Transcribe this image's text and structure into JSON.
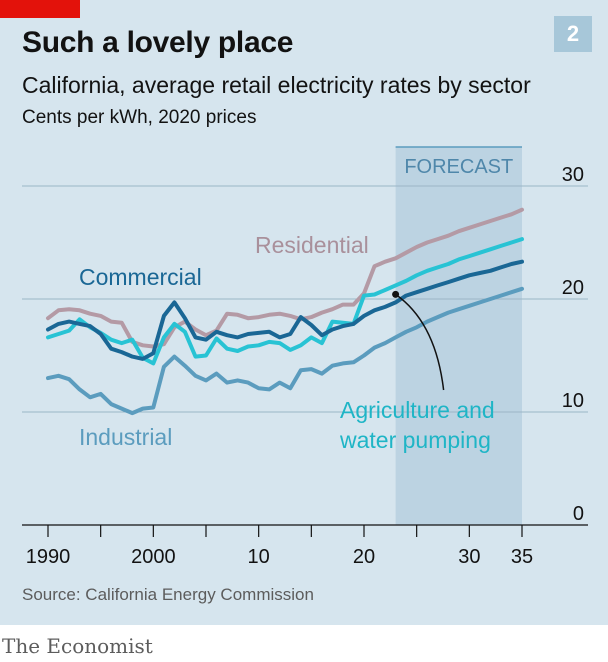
{
  "header": {
    "title": "Such a lovely place",
    "chart_number": "2",
    "subtitle": "California, average retail electricity rates by sector",
    "units": "Cents per kWh, 2020 prices"
  },
  "footer": {
    "source": "Source: California Energy Commission",
    "brand": "The Economist"
  },
  "colors": {
    "background": "#d6e5ee",
    "forecast_band": "#bcd3e2",
    "residential": "#b49aa5",
    "commercial": "#1a6795",
    "agriculture": "#28c3d4",
    "industrial": "#5b9cbe",
    "brand_red": "#e3120b"
  },
  "chart_data": {
    "type": "line",
    "x_range": [
      1990,
      2035
    ],
    "ylim": [
      0,
      30
    ],
    "y_ticks": [
      0,
      10,
      20,
      30
    ],
    "x_ticks": [
      1990,
      2000,
      2010,
      2020,
      2030,
      2035
    ],
    "x_tick_labels": [
      "1990",
      "2000",
      "10",
      "20",
      "30",
      "35"
    ],
    "grid": true,
    "forecast": {
      "label": "FORECAST",
      "start": 2023,
      "end": 2035
    },
    "x": [
      1990,
      1991,
      1992,
      1993,
      1994,
      1995,
      1996,
      1997,
      1998,
      1999,
      2000,
      2001,
      2002,
      2003,
      2004,
      2005,
      2006,
      2007,
      2008,
      2009,
      2010,
      2011,
      2012,
      2013,
      2014,
      2015,
      2016,
      2017,
      2018,
      2019,
      2020,
      2021,
      2022,
      2023,
      2024,
      2025,
      2026,
      2027,
      2028,
      2029,
      2030,
      2031,
      2032,
      2033,
      2034,
      2035
    ],
    "series": [
      {
        "name": "Residential",
        "key": "residential",
        "values": [
          18.3,
          19.0,
          19.1,
          19.0,
          18.7,
          18.5,
          18.0,
          17.9,
          16.2,
          15.9,
          15.8,
          16.0,
          17.5,
          18.0,
          17.3,
          16.8,
          17.2,
          18.7,
          18.6,
          18.3,
          18.4,
          18.6,
          18.7,
          18.5,
          18.2,
          18.4,
          18.8,
          19.1,
          19.5,
          19.5,
          20.5,
          22.9,
          23.3,
          23.6,
          24.1,
          24.6,
          25.0,
          25.3,
          25.6,
          26.0,
          26.3,
          26.6,
          26.9,
          27.2,
          27.5,
          27.9
        ]
      },
      {
        "name": "Commercial",
        "key": "commercial",
        "values": [
          17.3,
          17.8,
          18.0,
          17.8,
          17.6,
          16.9,
          15.6,
          15.3,
          14.9,
          14.7,
          15.2,
          18.5,
          19.7,
          18.3,
          16.6,
          16.4,
          17.1,
          16.8,
          16.6,
          16.9,
          17.0,
          17.1,
          16.6,
          16.9,
          18.4,
          17.7,
          16.8,
          17.3,
          17.6,
          17.8,
          18.5,
          19.0,
          19.3,
          19.7,
          20.3,
          20.6,
          20.9,
          21.2,
          21.5,
          21.8,
          22.1,
          22.3,
          22.5,
          22.8,
          23.1,
          23.3
        ]
      },
      {
        "name": "Agriculture and water pumping",
        "key": "agriculture",
        "values": [
          16.6,
          16.9,
          17.2,
          18.2,
          17.5,
          17.0,
          16.4,
          16.1,
          16.4,
          14.8,
          14.3,
          16.6,
          17.8,
          17.1,
          14.9,
          15.0,
          16.5,
          15.6,
          15.4,
          15.8,
          15.9,
          16.2,
          16.1,
          15.5,
          15.9,
          16.6,
          16.1,
          18.0,
          17.9,
          17.8,
          20.3,
          20.4,
          20.8,
          21.2,
          21.6,
          22.1,
          22.5,
          22.8,
          23.1,
          23.5,
          23.8,
          24.1,
          24.4,
          24.7,
          25.0,
          25.3
        ]
      },
      {
        "name": "Industrial",
        "key": "industrial",
        "values": [
          13.0,
          13.2,
          12.9,
          12.0,
          11.3,
          11.6,
          10.7,
          10.3,
          9.9,
          10.3,
          10.4,
          14.0,
          14.9,
          14.1,
          13.2,
          12.8,
          13.4,
          12.6,
          12.8,
          12.6,
          12.1,
          12.0,
          12.6,
          12.1,
          13.7,
          13.8,
          13.4,
          14.1,
          14.3,
          14.4,
          15.0,
          15.7,
          16.1,
          16.6,
          17.1,
          17.5,
          18.0,
          18.4,
          18.8,
          19.1,
          19.4,
          19.7,
          20.0,
          20.3,
          20.6,
          20.9
        ]
      }
    ]
  }
}
